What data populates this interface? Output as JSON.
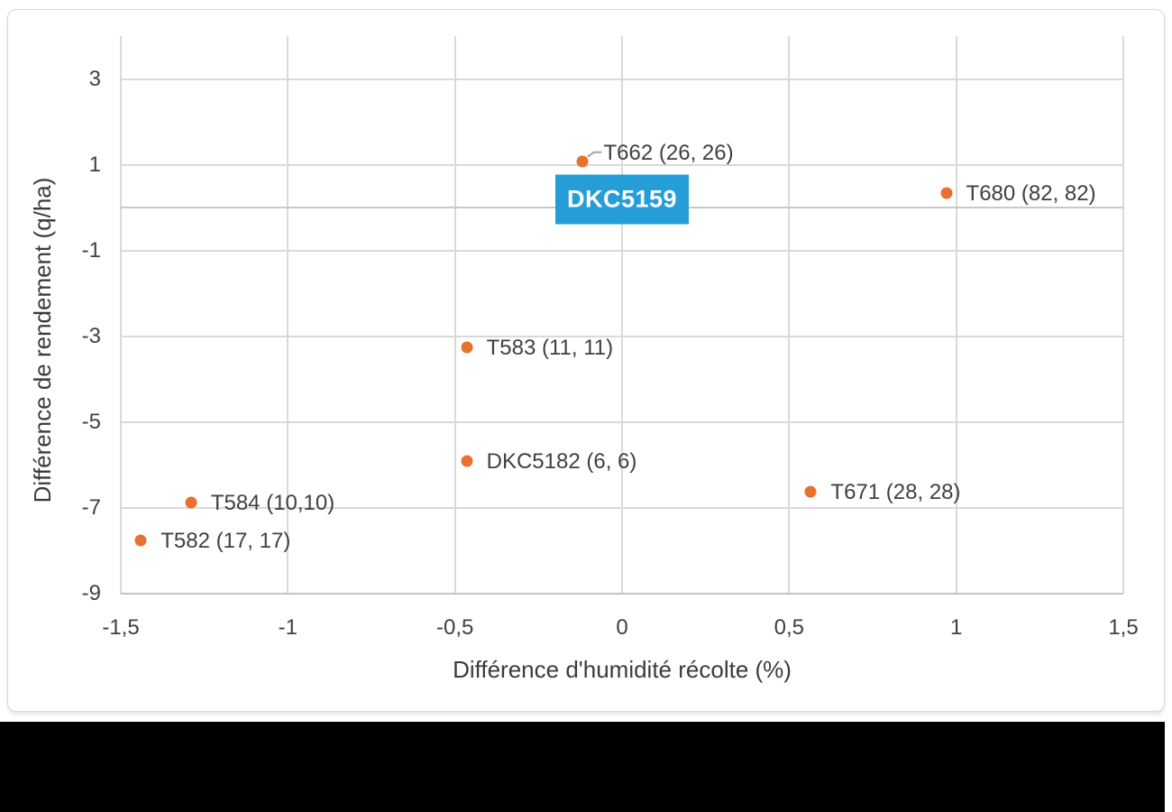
{
  "chart_data": {
    "type": "scatter",
    "title": "",
    "xlabel": "Différence d'humidité récolte (%)",
    "ylabel": "Différence de rendement (q/ha)",
    "xlim": [
      -1.5,
      1.5
    ],
    "ylim": [
      -9,
      4
    ],
    "grid": true,
    "legend": "none",
    "marker_color": "#E8712F",
    "gridline_color": "#D9D9D9",
    "tick_label_color": "#404040",
    "data_label_color": "#404040",
    "xticks": [
      {
        "v": -1.5,
        "label": "-1,5"
      },
      {
        "v": -1.0,
        "label": "-1"
      },
      {
        "v": -0.5,
        "label": "-0,5"
      },
      {
        "v": 0.0,
        "label": "0"
      },
      {
        "v": 0.5,
        "label": "0,5"
      },
      {
        "v": 1.0,
        "label": "1"
      },
      {
        "v": 1.5,
        "label": "1,5"
      }
    ],
    "yticks": [
      {
        "v": 3,
        "label": "3"
      },
      {
        "v": 1,
        "label": "1"
      },
      {
        "v": -1,
        "label": "-1"
      },
      {
        "v": -3,
        "label": "-3"
      },
      {
        "v": -5,
        "label": "-5"
      },
      {
        "v": -7,
        "label": "-7"
      },
      {
        "v": -9,
        "label": "-9"
      }
    ],
    "points": [
      {
        "name": "T662",
        "x": -0.12,
        "y": 1.08,
        "label": "T662 (26, 26)",
        "label_offset": [
          24,
          -9
        ],
        "leader": true
      },
      {
        "name": "DKC5159",
        "x": 0.0,
        "y": 0.2,
        "label": "DKC5159",
        "highlighted": true
      },
      {
        "name": "T680",
        "x": 0.97,
        "y": 0.33,
        "label": "T680 (82, 82)"
      },
      {
        "name": "T583",
        "x": -0.465,
        "y": -3.25,
        "label": "T583 (11, 11)"
      },
      {
        "name": "DKC5182",
        "x": -0.465,
        "y": -5.9,
        "label": "DKC5182 (6, 6)"
      },
      {
        "name": "T584",
        "x": -1.29,
        "y": -6.87,
        "label": "T584 (10,10)"
      },
      {
        "name": "T582",
        "x": -1.44,
        "y": -7.76,
        "label": "T582 (17, 17)"
      },
      {
        "name": "T671",
        "x": 0.565,
        "y": -6.62,
        "label": "T671 (28, 28)"
      }
    ],
    "highlight": {
      "label": "DKC5159",
      "bg_color": "#259DD6",
      "text_color": "#FFFFFF"
    },
    "leader_color": "#A6A6A6"
  }
}
